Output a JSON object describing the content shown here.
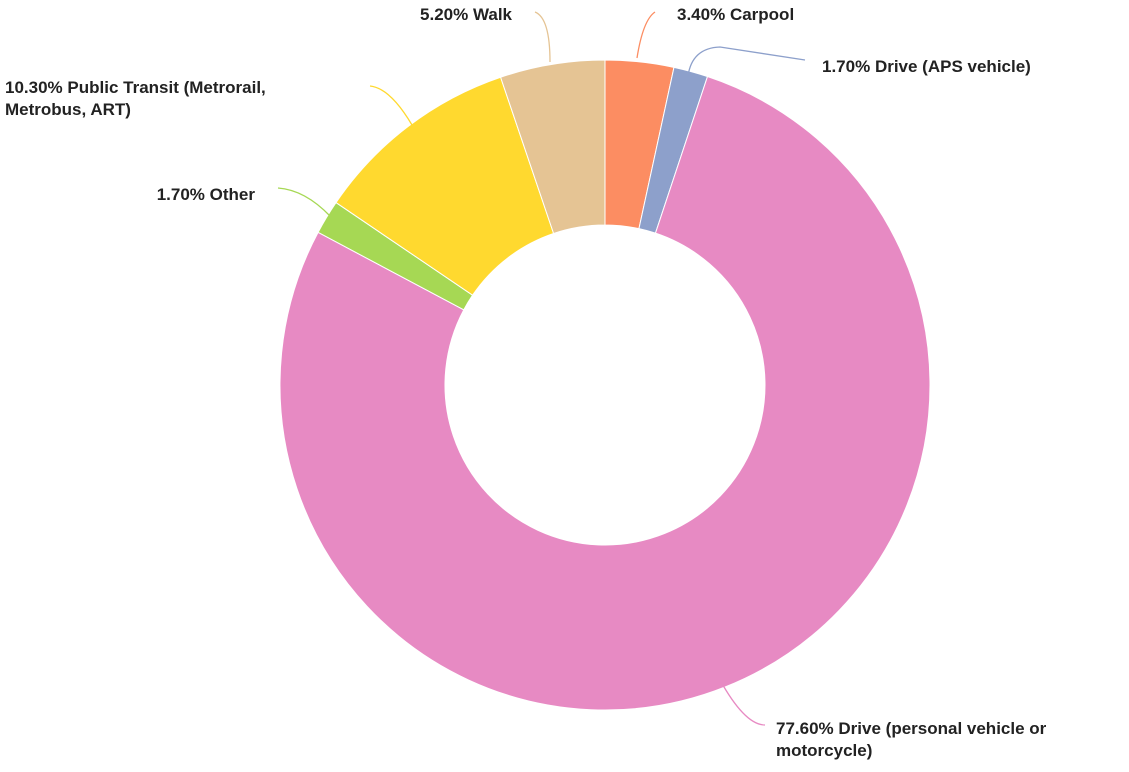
{
  "chart_data": {
    "type": "donut",
    "categories": [
      "Carpool",
      "Drive (APS vehicle)",
      "Drive (personal vehicle or motorcycle)",
      "Other",
      "Public Transit (Metrorail, Metrobus, ART)",
      "Walk"
    ],
    "values": [
      3.4,
      1.7,
      77.6,
      1.7,
      10.3,
      5.2
    ],
    "value_labels": [
      "3.40%",
      "1.70%",
      "77.60%",
      "1.70%",
      "10.30%",
      "5.20%"
    ],
    "colors": [
      "#fc8d62",
      "#8da0cb",
      "#e78ac3",
      "#a6d854",
      "#ffd92f",
      "#e5c494"
    ]
  }
}
